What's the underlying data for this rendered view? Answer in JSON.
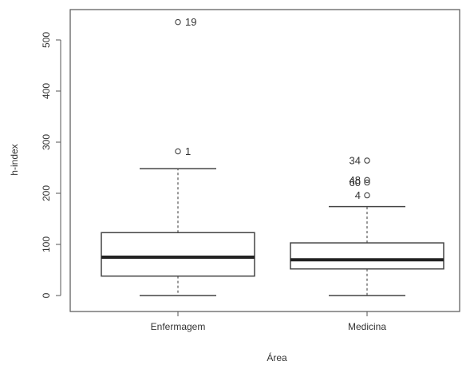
{
  "chart_data": {
    "type": "boxplot",
    "title": "",
    "xlabel": "Área",
    "ylabel": "h-index",
    "ylim": [
      0,
      550
    ],
    "y_ticks": [
      0,
      100,
      200,
      300,
      400,
      500
    ],
    "y_tick_labels": [
      "0",
      "100",
      "200",
      "300",
      "400",
      "500"
    ],
    "categories": [
      "Enfermagem",
      "Medicina"
    ],
    "boxes": [
      {
        "category": "Enfermagem",
        "whisker_low": 0,
        "q1": 38,
        "median": 75,
        "q3": 123,
        "whisker_high": 248,
        "outliers": [
          {
            "value": 282,
            "label": "1"
          },
          {
            "value": 535,
            "label": "19"
          }
        ]
      },
      {
        "category": "Medicina",
        "whisker_low": 0,
        "q1": 52,
        "median": 70,
        "q3": 103,
        "whisker_high": 174,
        "outliers": [
          {
            "value": 196,
            "label": "4"
          },
          {
            "value": 221,
            "label": "60"
          },
          {
            "value": 226,
            "label": "48"
          },
          {
            "value": 264,
            "label": "34"
          }
        ]
      }
    ],
    "grid": false,
    "colors": {
      "box_fill": "#ffffff",
      "box_stroke": "#444444",
      "median": "#222222",
      "whisker": "#555555",
      "axis": "#555555",
      "text": "#333333"
    }
  }
}
